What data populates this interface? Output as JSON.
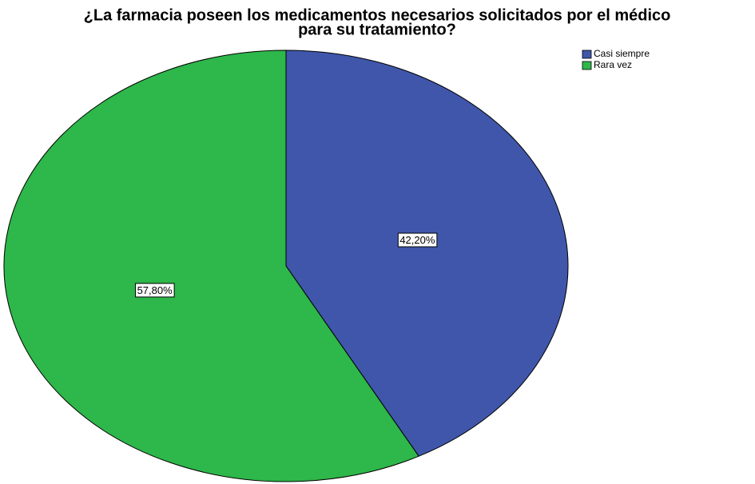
{
  "chart_data": {
    "type": "pie",
    "title": [
      "¿La farmacia  poseen los medicamentos necesarios solicitados por el médico",
      "para su tratamiento?"
    ],
    "categories": [
      "Casi siempre",
      "Rara vez"
    ],
    "values": [
      42.2,
      57.8
    ],
    "value_labels": [
      "42,20%",
      "57,80%"
    ],
    "colors": [
      "#3f56aa",
      "#2eb74a"
    ],
    "legend": "top-right"
  }
}
